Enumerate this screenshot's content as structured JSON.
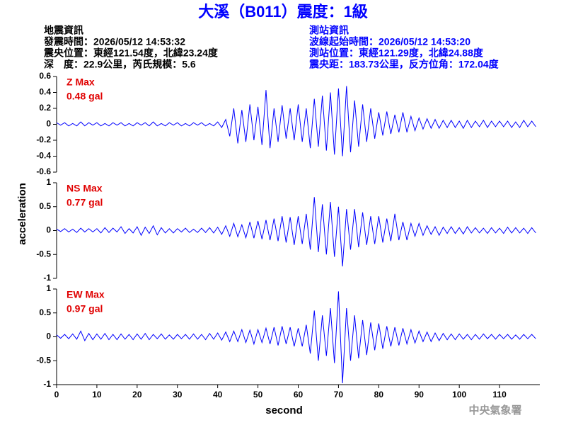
{
  "header": {
    "title": "大溪（B011）震度：1級",
    "left_lines": [
      "地震資訊",
      "發震時間：2026/05/12 14:53:32",
      "震央位置：東經121.54度，北緯23.24度",
      "深　度：22.9公里，芮氏規模：5.6"
    ],
    "right_lines": [
      "測站資訊",
      "波線起始時間：2026/05/12 14:53:20",
      "測站位置：東經121.29度，北緯24.88度",
      "震央距：183.73公里，反方位角：172.04度"
    ],
    "footer": "中央氣象署"
  },
  "chart_data": {
    "type": "line",
    "xlabel": "second",
    "ylabel": "acceleration",
    "xlim": [
      0,
      120
    ],
    "xticks": [
      0,
      10,
      20,
      30,
      40,
      50,
      60,
      70,
      80,
      90,
      100,
      110
    ],
    "x": [
      0,
      1,
      2,
      3,
      4,
      5,
      6,
      7,
      8,
      9,
      10,
      11,
      12,
      13,
      14,
      15,
      16,
      17,
      18,
      19,
      20,
      21,
      22,
      23,
      24,
      25,
      26,
      27,
      28,
      29,
      30,
      31,
      32,
      33,
      34,
      35,
      36,
      37,
      38,
      39,
      40,
      41,
      42,
      43,
      44,
      45,
      46,
      47,
      48,
      49,
      50,
      51,
      52,
      53,
      54,
      55,
      56,
      57,
      58,
      59,
      60,
      61,
      62,
      63,
      64,
      65,
      66,
      67,
      68,
      69,
      70,
      71,
      72,
      73,
      74,
      75,
      76,
      77,
      78,
      79,
      80,
      81,
      82,
      83,
      84,
      85,
      86,
      87,
      88,
      89,
      90,
      91,
      92,
      93,
      94,
      95,
      96,
      97,
      98,
      99,
      100,
      101,
      102,
      103,
      104,
      105,
      106,
      107,
      108,
      109,
      110,
      111,
      112,
      113,
      114,
      115,
      116,
      117,
      118,
      119
    ],
    "panels": [
      {
        "label": "Z Max",
        "max_label": "0.48 gal",
        "ylim": [
          -0.6,
          0.6
        ],
        "yticks": [
          0.6,
          0.4,
          0.2,
          0,
          -0.2,
          -0.4,
          -0.6
        ],
        "series": [
          {
            "color": "#0000ff",
            "values": [
              0.02,
              -0.01,
              0.02,
              -0.02,
              0.01,
              -0.02,
              0.03,
              -0.02,
              0.02,
              -0.01,
              0.02,
              -0.02,
              0.01,
              -0.02,
              0.02,
              -0.01,
              0.02,
              -0.02,
              0.01,
              -0.02,
              0.02,
              -0.01,
              0.02,
              -0.02,
              0.03,
              -0.02,
              0.01,
              -0.02,
              0.02,
              -0.01,
              0.02,
              -0.02,
              0.01,
              -0.02,
              0.02,
              -0.01,
              0.02,
              -0.02,
              0.01,
              -0.02,
              0.03,
              -0.04,
              0.06,
              -0.15,
              0.2,
              -0.24,
              0.18,
              -0.22,
              0.25,
              -0.2,
              0.22,
              -0.26,
              0.43,
              -0.3,
              0.2,
              -0.22,
              0.24,
              -0.18,
              0.2,
              -0.2,
              0.25,
              -0.22,
              0.2,
              -0.3,
              0.32,
              -0.28,
              0.36,
              -0.33,
              0.4,
              -0.38,
              0.45,
              -0.4,
              0.48,
              -0.35,
              0.3,
              -0.28,
              0.25,
              -0.22,
              0.2,
              -0.18,
              0.15,
              -0.14,
              0.16,
              -0.12,
              0.12,
              -0.1,
              0.15,
              -0.1,
              0.1,
              -0.08,
              0.08,
              -0.06,
              0.07,
              -0.05,
              0.06,
              -0.05,
              0.05,
              -0.04,
              0.05,
              -0.04,
              0.04,
              -0.05,
              0.05,
              -0.04,
              0.04,
              -0.03,
              0.05,
              -0.04,
              0.04,
              -0.03,
              0.04,
              -0.03,
              0.04,
              -0.04,
              0.03,
              -0.04,
              0.05,
              -0.03,
              0.04,
              -0.03
            ]
          }
        ]
      },
      {
        "label": "NS Max",
        "max_label": "0.77 gal",
        "ylim": [
          -1,
          1
        ],
        "yticks": [
          1,
          0.5,
          0,
          -0.5,
          -1
        ],
        "series": [
          {
            "color": "#0000ff",
            "values": [
              0.03,
              -0.02,
              0.04,
              -0.03,
              0.03,
              -0.04,
              0.05,
              -0.03,
              0.04,
              -0.03,
              0.04,
              -0.05,
              0.06,
              -0.04,
              0.05,
              -0.03,
              0.08,
              -0.06,
              0.04,
              -0.05,
              0.08,
              -0.1,
              0.07,
              -0.06,
              0.1,
              -0.09,
              0.06,
              -0.05,
              0.04,
              -0.05,
              0.04,
              -0.03,
              0.05,
              -0.04,
              0.03,
              -0.04,
              0.05,
              -0.04,
              0.06,
              -0.05,
              0.07,
              -0.08,
              0.1,
              -0.12,
              0.15,
              -0.13,
              0.12,
              -0.15,
              0.18,
              -0.16,
              0.2,
              -0.18,
              0.22,
              -0.2,
              0.25,
              -0.22,
              0.3,
              -0.25,
              0.28,
              -0.3,
              0.3,
              -0.28,
              0.35,
              -0.4,
              0.7,
              -0.45,
              0.55,
              -0.5,
              0.6,
              -0.55,
              0.5,
              -0.75,
              0.45,
              -0.4,
              0.45,
              -0.35,
              0.38,
              -0.3,
              0.3,
              -0.28,
              0.3,
              -0.25,
              0.25,
              -0.22,
              0.35,
              -0.2,
              0.18,
              -0.2,
              0.15,
              -0.12,
              0.15,
              -0.1,
              0.1,
              -0.08,
              0.08,
              -0.1,
              0.07,
              -0.06,
              0.08,
              -0.06,
              0.06,
              -0.07,
              0.08,
              -0.05,
              0.06,
              -0.05,
              0.05,
              -0.06,
              0.06,
              -0.05,
              0.05,
              -0.06,
              0.07,
              -0.05,
              0.06,
              -0.05,
              0.05,
              -0.06,
              0.06,
              -0.05
            ]
          }
        ]
      },
      {
        "label": "EW Max",
        "max_label": "0.97 gal",
        "ylim": [
          -1,
          1
        ],
        "yticks": [
          1,
          0.5,
          0,
          -0.5,
          -1
        ],
        "series": [
          {
            "color": "#0000ff",
            "values": [
              0.04,
              -0.03,
              0.05,
              -0.04,
              0.06,
              -0.05,
              0.12,
              -0.08,
              0.07,
              -0.06,
              0.06,
              -0.05,
              0.07,
              -0.06,
              0.05,
              -0.06,
              0.06,
              -0.05,
              0.05,
              -0.06,
              0.06,
              -0.05,
              0.07,
              -0.06,
              0.05,
              -0.04,
              0.06,
              -0.05,
              0.04,
              -0.05,
              0.05,
              -0.04,
              0.05,
              -0.05,
              0.06,
              -0.05,
              0.05,
              -0.06,
              0.07,
              -0.05,
              0.08,
              -0.07,
              0.1,
              -0.1,
              0.12,
              -0.1,
              0.15,
              -0.12,
              0.14,
              -0.15,
              0.15,
              -0.12,
              0.18,
              -0.15,
              0.2,
              -0.18,
              0.22,
              -0.15,
              0.2,
              -0.2,
              0.18,
              -0.2,
              0.25,
              -0.35,
              0.55,
              -0.5,
              0.45,
              -0.4,
              0.6,
              -0.55,
              0.95,
              -0.97,
              0.6,
              -0.5,
              0.45,
              -0.45,
              0.35,
              -0.38,
              0.3,
              -0.28,
              0.28,
              -0.25,
              0.22,
              -0.2,
              0.2,
              -0.18,
              0.18,
              -0.15,
              0.15,
              -0.13,
              0.12,
              -0.1,
              0.1,
              -0.1,
              0.08,
              -0.08,
              0.07,
              -0.06,
              0.06,
              -0.06,
              0.06,
              -0.05,
              0.05,
              -0.06,
              0.05,
              -0.05,
              0.06,
              -0.04,
              0.05,
              -0.05,
              0.05,
              -0.04,
              0.05,
              -0.05,
              0.04,
              -0.05,
              0.05,
              -0.04,
              0.05,
              -0.04
            ]
          }
        ]
      }
    ]
  }
}
